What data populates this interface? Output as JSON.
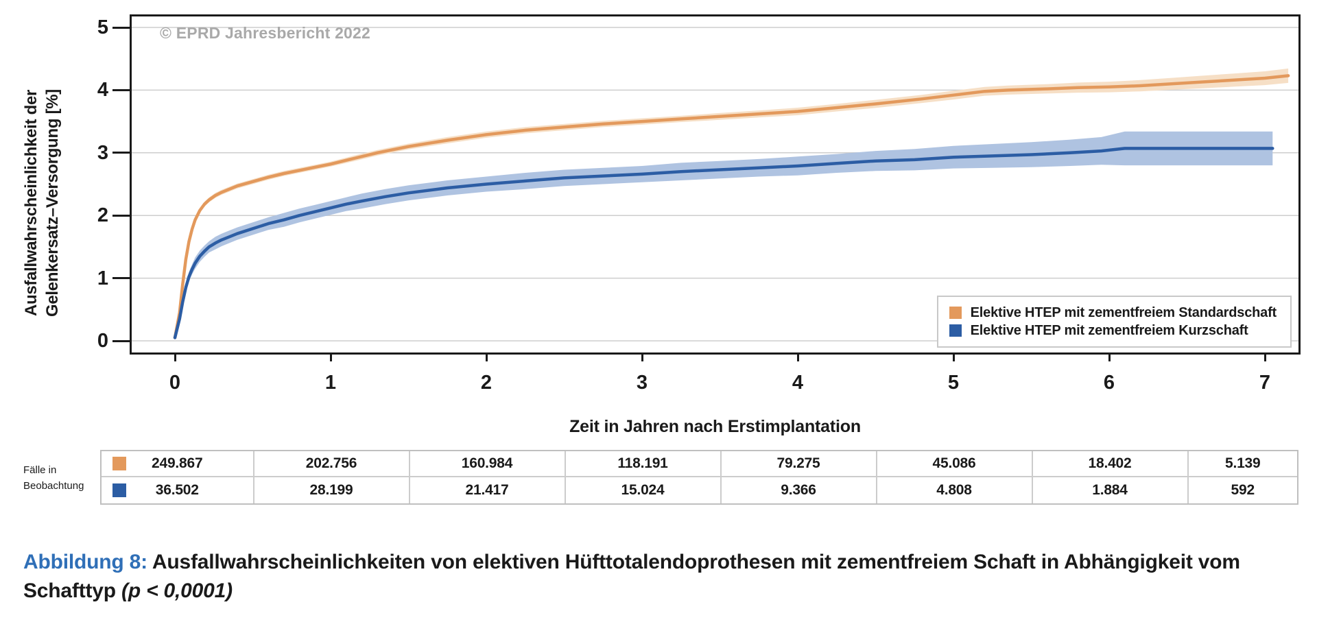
{
  "watermark": "© EPRD Jahresbericht 2022",
  "chart_data": {
    "type": "line",
    "title": "",
    "xlabel": "Zeit in Jahren nach Erstimplantation",
    "ylabel_line1": "Ausfallwahrscheinlichkeit der",
    "ylabel_line2": "Gelenkersatz–Versorgung [%]",
    "xticks": [
      0,
      1,
      2,
      3,
      4,
      5,
      6,
      7
    ],
    "yticks": [
      0,
      1,
      2,
      3,
      4,
      5
    ],
    "xlim": [
      -0.28,
      7.21
    ],
    "ylim": [
      0,
      5.17
    ],
    "grid": "horizontal",
    "grid_color": "#cdcdcd",
    "legend_position": "bottom-right",
    "series": [
      {
        "name": "Elektive HTEP mit zementfreiem Standardschaft",
        "color": "#e3995c",
        "band_color": "#f6dfc6",
        "x": [
          0.0,
          0.03,
          0.05,
          0.07,
          0.09,
          0.11,
          0.13,
          0.16,
          0.19,
          0.22,
          0.26,
          0.3,
          0.35,
          0.4,
          0.5,
          0.6,
          0.7,
          0.8,
          0.9,
          1.0,
          1.15,
          1.3,
          1.5,
          1.75,
          2.0,
          2.25,
          2.5,
          2.75,
          3.0,
          3.25,
          3.5,
          3.75,
          4.0,
          4.25,
          4.5,
          4.8,
          5.0,
          5.2,
          5.35,
          5.6,
          5.8,
          6.0,
          6.2,
          6.4,
          6.6,
          6.8,
          7.0,
          7.15
        ],
        "y": [
          0.05,
          0.45,
          0.9,
          1.3,
          1.58,
          1.78,
          1.93,
          2.08,
          2.18,
          2.25,
          2.32,
          2.37,
          2.42,
          2.47,
          2.54,
          2.61,
          2.67,
          2.72,
          2.77,
          2.82,
          2.91,
          3.0,
          3.1,
          3.2,
          3.29,
          3.36,
          3.41,
          3.46,
          3.5,
          3.54,
          3.58,
          3.62,
          3.66,
          3.72,
          3.78,
          3.86,
          3.92,
          3.98,
          4.0,
          4.02,
          4.04,
          4.05,
          4.07,
          4.1,
          4.13,
          4.16,
          4.19,
          4.23
        ],
        "ci": [
          0.02,
          0.03,
          0.03,
          0.04,
          0.04,
          0.04,
          0.04,
          0.04,
          0.04,
          0.04,
          0.04,
          0.04,
          0.04,
          0.04,
          0.04,
          0.04,
          0.04,
          0.04,
          0.04,
          0.04,
          0.045,
          0.045,
          0.045,
          0.05,
          0.05,
          0.05,
          0.05,
          0.05,
          0.05,
          0.05,
          0.055,
          0.055,
          0.06,
          0.06,
          0.065,
          0.065,
          0.07,
          0.07,
          0.072,
          0.075,
          0.08,
          0.085,
          0.09,
          0.095,
          0.1,
          0.105,
          0.11,
          0.115
        ]
      },
      {
        "name": "Elektive HTEP mit zementfreiem Kurzschaft",
        "color": "#2c5da4",
        "band_color": "#afc3e1",
        "x": [
          0.0,
          0.03,
          0.05,
          0.07,
          0.09,
          0.11,
          0.13,
          0.16,
          0.19,
          0.22,
          0.26,
          0.3,
          0.35,
          0.4,
          0.5,
          0.6,
          0.7,
          0.8,
          0.9,
          1.0,
          1.1,
          1.2,
          1.35,
          1.5,
          1.75,
          2.0,
          2.25,
          2.5,
          2.75,
          3.0,
          3.25,
          3.5,
          3.75,
          4.0,
          4.25,
          4.5,
          4.75,
          5.0,
          5.25,
          5.5,
          5.75,
          5.95,
          6.1,
          7.05
        ],
        "y": [
          0.05,
          0.35,
          0.62,
          0.85,
          1.02,
          1.14,
          1.24,
          1.35,
          1.43,
          1.5,
          1.56,
          1.61,
          1.66,
          1.71,
          1.79,
          1.87,
          1.93,
          2.0,
          2.06,
          2.12,
          2.18,
          2.23,
          2.3,
          2.36,
          2.44,
          2.5,
          2.55,
          2.6,
          2.63,
          2.66,
          2.7,
          2.73,
          2.76,
          2.79,
          2.83,
          2.87,
          2.89,
          2.93,
          2.95,
          2.97,
          3.0,
          3.03,
          3.07,
          3.07
        ],
        "ci": [
          0.02,
          0.04,
          0.06,
          0.07,
          0.08,
          0.08,
          0.09,
          0.09,
          0.09,
          0.09,
          0.1,
          0.1,
          0.1,
          0.1,
          0.1,
          0.1,
          0.11,
          0.11,
          0.11,
          0.11,
          0.11,
          0.12,
          0.12,
          0.12,
          0.12,
          0.12,
          0.13,
          0.13,
          0.13,
          0.13,
          0.14,
          0.14,
          0.14,
          0.15,
          0.15,
          0.16,
          0.17,
          0.18,
          0.19,
          0.2,
          0.21,
          0.22,
          0.27,
          0.27
        ]
      }
    ]
  },
  "risk_table": {
    "row_label_line1": "Fälle in",
    "row_label_line2": "Beobachtung",
    "rows": [
      {
        "color": "#e3995c",
        "values": [
          "249.867",
          "202.756",
          "160.984",
          "118.191",
          "79.275",
          "45.086",
          "18.402",
          "5.139"
        ]
      },
      {
        "color": "#2c5da4",
        "values": [
          "36.502",
          "28.199",
          "21.417",
          "15.024",
          "9.366",
          "4.808",
          "1.884",
          "592"
        ]
      }
    ]
  },
  "caption": {
    "label": "Abbildung 8:",
    "label_color": "#2f6fb7",
    "text_line1": " Ausfallwahrscheinlichkeiten von elektiven Hüfttotalendoprothesen mit zementfreiem Schaft in Abhängigkeit vom",
    "text_line2_normal": "Schafttyp ",
    "text_line2_italic": "(p < 0,0001)"
  }
}
